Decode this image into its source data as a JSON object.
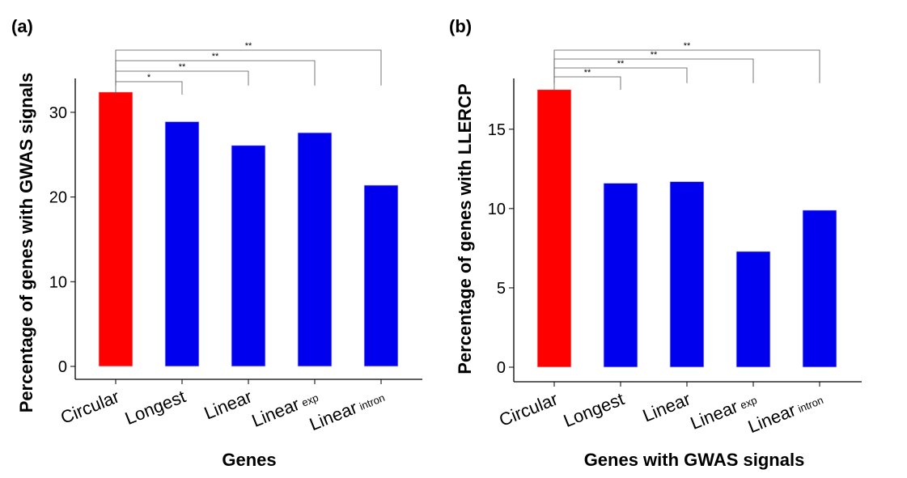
{
  "figure": {
    "panels": [
      {
        "label": "(a)"
      },
      {
        "label": "(b)"
      }
    ]
  },
  "chart_data": [
    {
      "type": "bar",
      "panel": "(a)",
      "title": "",
      "xlabel": "Genes",
      "ylabel": "Percentage of genes with GWAS signals",
      "ylim": [
        0,
        34
      ],
      "yticks": [
        0,
        10,
        20,
        30
      ],
      "grid": false,
      "categories": [
        {
          "main": "Circular",
          "sub": ""
        },
        {
          "main": "Longest",
          "sub": ""
        },
        {
          "main": "Linear",
          "sub": ""
        },
        {
          "main": "Linear",
          "sub": "exp"
        },
        {
          "main": "Linear",
          "sub": "intron"
        }
      ],
      "values": [
        32.4,
        28.9,
        26.1,
        27.6,
        21.4
      ],
      "colors": [
        "#ff0000",
        "#0000ee",
        "#0000ee",
        "#0000ee",
        "#0000ee"
      ],
      "significance": [
        {
          "from": 0,
          "to": 1,
          "label": "*"
        },
        {
          "from": 0,
          "to": 2,
          "label": "**"
        },
        {
          "from": 0,
          "to": 3,
          "label": "**"
        },
        {
          "from": 0,
          "to": 4,
          "label": "**"
        }
      ]
    },
    {
      "type": "bar",
      "panel": "(b)",
      "title": "",
      "xlabel": "Genes with GWAS signals",
      "ylabel": "Percentage of genes with LLERCP",
      "ylim": [
        0,
        18.2
      ],
      "yticks": [
        0,
        5,
        10,
        15
      ],
      "grid": false,
      "categories": [
        {
          "main": "Circular",
          "sub": ""
        },
        {
          "main": "Longest",
          "sub": ""
        },
        {
          "main": "Linear",
          "sub": ""
        },
        {
          "main": "Linear",
          "sub": "exp"
        },
        {
          "main": "Linear",
          "sub": "intron"
        }
      ],
      "values": [
        17.5,
        11.6,
        11.7,
        7.3,
        9.9
      ],
      "colors": [
        "#ff0000",
        "#0000ee",
        "#0000ee",
        "#0000ee",
        "#0000ee"
      ],
      "significance": [
        {
          "from": 0,
          "to": 1,
          "label": "**"
        },
        {
          "from": 0,
          "to": 2,
          "label": "**"
        },
        {
          "from": 0,
          "to": 3,
          "label": "**"
        },
        {
          "from": 0,
          "to": 4,
          "label": "**"
        }
      ]
    }
  ]
}
